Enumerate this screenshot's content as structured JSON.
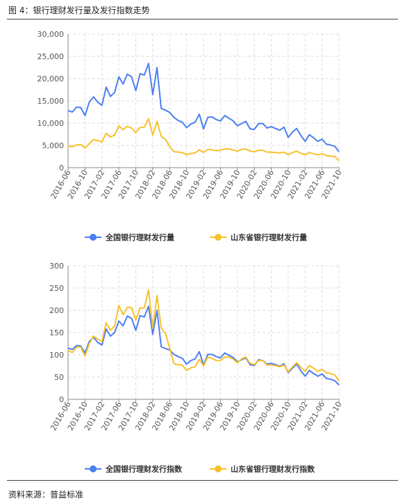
{
  "title": "图 4：银行理财发行量及发行指数走势",
  "source": "资料来源：普益标准",
  "colors": {
    "series1": "#4b7ff0",
    "series2": "#f7c12b",
    "grid": "#dddddd",
    "axis": "#888888"
  },
  "chart_data": [
    {
      "type": "line",
      "ylim": [
        0,
        30000
      ],
      "yticks": [
        0,
        5000,
        10000,
        15000,
        20000,
        25000,
        30000
      ],
      "ytick_labels": [
        "0",
        "5,000",
        "10,000",
        "15,000",
        "20,000",
        "25,000",
        "30,000"
      ],
      "x_tick_labels": [
        "2016-06",
        "2016-10",
        "2017-02",
        "2017-06",
        "2017-10",
        "2018-02",
        "2018-06",
        "2018-10",
        "2019-02",
        "2019-06",
        "2019-10",
        "2020-02",
        "2020-06",
        "2020-10",
        "2021-02",
        "2021-06",
        "2021-10"
      ],
      "grid": true,
      "legend_position": "bottom-center",
      "series": [
        {
          "name": "全国银行理财发行量",
          "values": [
            12800,
            12500,
            13600,
            13500,
            11700,
            14700,
            15900,
            14700,
            14000,
            18100,
            16000,
            16900,
            20400,
            18800,
            21000,
            20400,
            17300,
            21100,
            20800,
            23400,
            16400,
            22500,
            13300,
            12900,
            12400,
            11300,
            10600,
            10200,
            9000,
            9800,
            10200,
            12000,
            8700,
            11300,
            11400,
            10800,
            10500,
            11700,
            11100,
            10500,
            9400,
            9900,
            10400,
            8700,
            8600,
            9900,
            9900,
            8900,
            9200,
            8800,
            8400,
            9100,
            6800,
            8000,
            8800,
            7200,
            5900,
            7400,
            6700,
            5900,
            6400,
            5300,
            5100,
            4800,
            3600
          ]
        },
        {
          "name": "山东省银行理财发行量",
          "values": [
            4900,
            4700,
            5100,
            5200,
            4400,
            5400,
            6300,
            6100,
            5800,
            7700,
            6900,
            7300,
            9400,
            8500,
            9300,
            8900,
            7900,
            9000,
            9100,
            11000,
            7300,
            10400,
            7000,
            6400,
            4700,
            3600,
            3500,
            3400,
            2900,
            3200,
            3300,
            4000,
            3400,
            4100,
            4000,
            3800,
            3900,
            4200,
            4200,
            4000,
            3700,
            4100,
            4200,
            3700,
            3600,
            3900,
            3900,
            3500,
            3500,
            3400,
            3300,
            3500,
            2900,
            3400,
            3700,
            3200,
            2900,
            3400,
            3100,
            2900,
            3100,
            2700,
            2600,
            2500,
            1600
          ]
        }
      ]
    },
    {
      "type": "line",
      "ylim": [
        0,
        300
      ],
      "yticks": [
        0,
        50,
        100,
        150,
        200,
        250,
        300
      ],
      "ytick_labels": [
        "0",
        "50",
        "100",
        "150",
        "200",
        "250",
        "300"
      ],
      "x_tick_labels": [
        "2016-06",
        "2016-10",
        "2017-02",
        "2017-06",
        "2017-10",
        "2018-02",
        "2018-06",
        "2018-10",
        "2019-02",
        "2019-06",
        "2019-10",
        "2020-02",
        "2020-06",
        "2020-10",
        "2021-02",
        "2021-06",
        "2021-10"
      ],
      "grid": true,
      "legend_position": "bottom-center",
      "series": [
        {
          "name": "全国银行理财发行指数",
          "values": [
            115,
            112,
            121,
            120,
            104,
            130,
            139,
            128,
            122,
            158,
            142,
            150,
            176,
            165,
            187,
            182,
            155,
            188,
            185,
            209,
            146,
            200,
            118,
            114,
            111,
            101,
            96,
            92,
            79,
            87,
            91,
            107,
            77,
            101,
            101,
            96,
            93,
            104,
            99,
            94,
            84,
            89,
            93,
            78,
            76,
            89,
            87,
            79,
            81,
            78,
            74,
            80,
            60,
            70,
            79,
            64,
            52,
            65,
            58,
            52,
            57,
            47,
            45,
            42,
            32
          ]
        },
        {
          "name": "山东省银行理财发行指数",
          "values": [
            110,
            105,
            117,
            118,
            97,
            125,
            142,
            135,
            130,
            172,
            155,
            165,
            211,
            190,
            207,
            206,
            178,
            205,
            205,
            246,
            160,
            233,
            160,
            148,
            115,
            80,
            78,
            77,
            65,
            71,
            73,
            90,
            75,
            95,
            92,
            87,
            87,
            95,
            95,
            90,
            82,
            91,
            95,
            81,
            78,
            87,
            87,
            77,
            77,
            76,
            73,
            77,
            62,
            73,
            82,
            72,
            63,
            76,
            70,
            63,
            67,
            60,
            58,
            55,
            41
          ]
        }
      ]
    }
  ]
}
